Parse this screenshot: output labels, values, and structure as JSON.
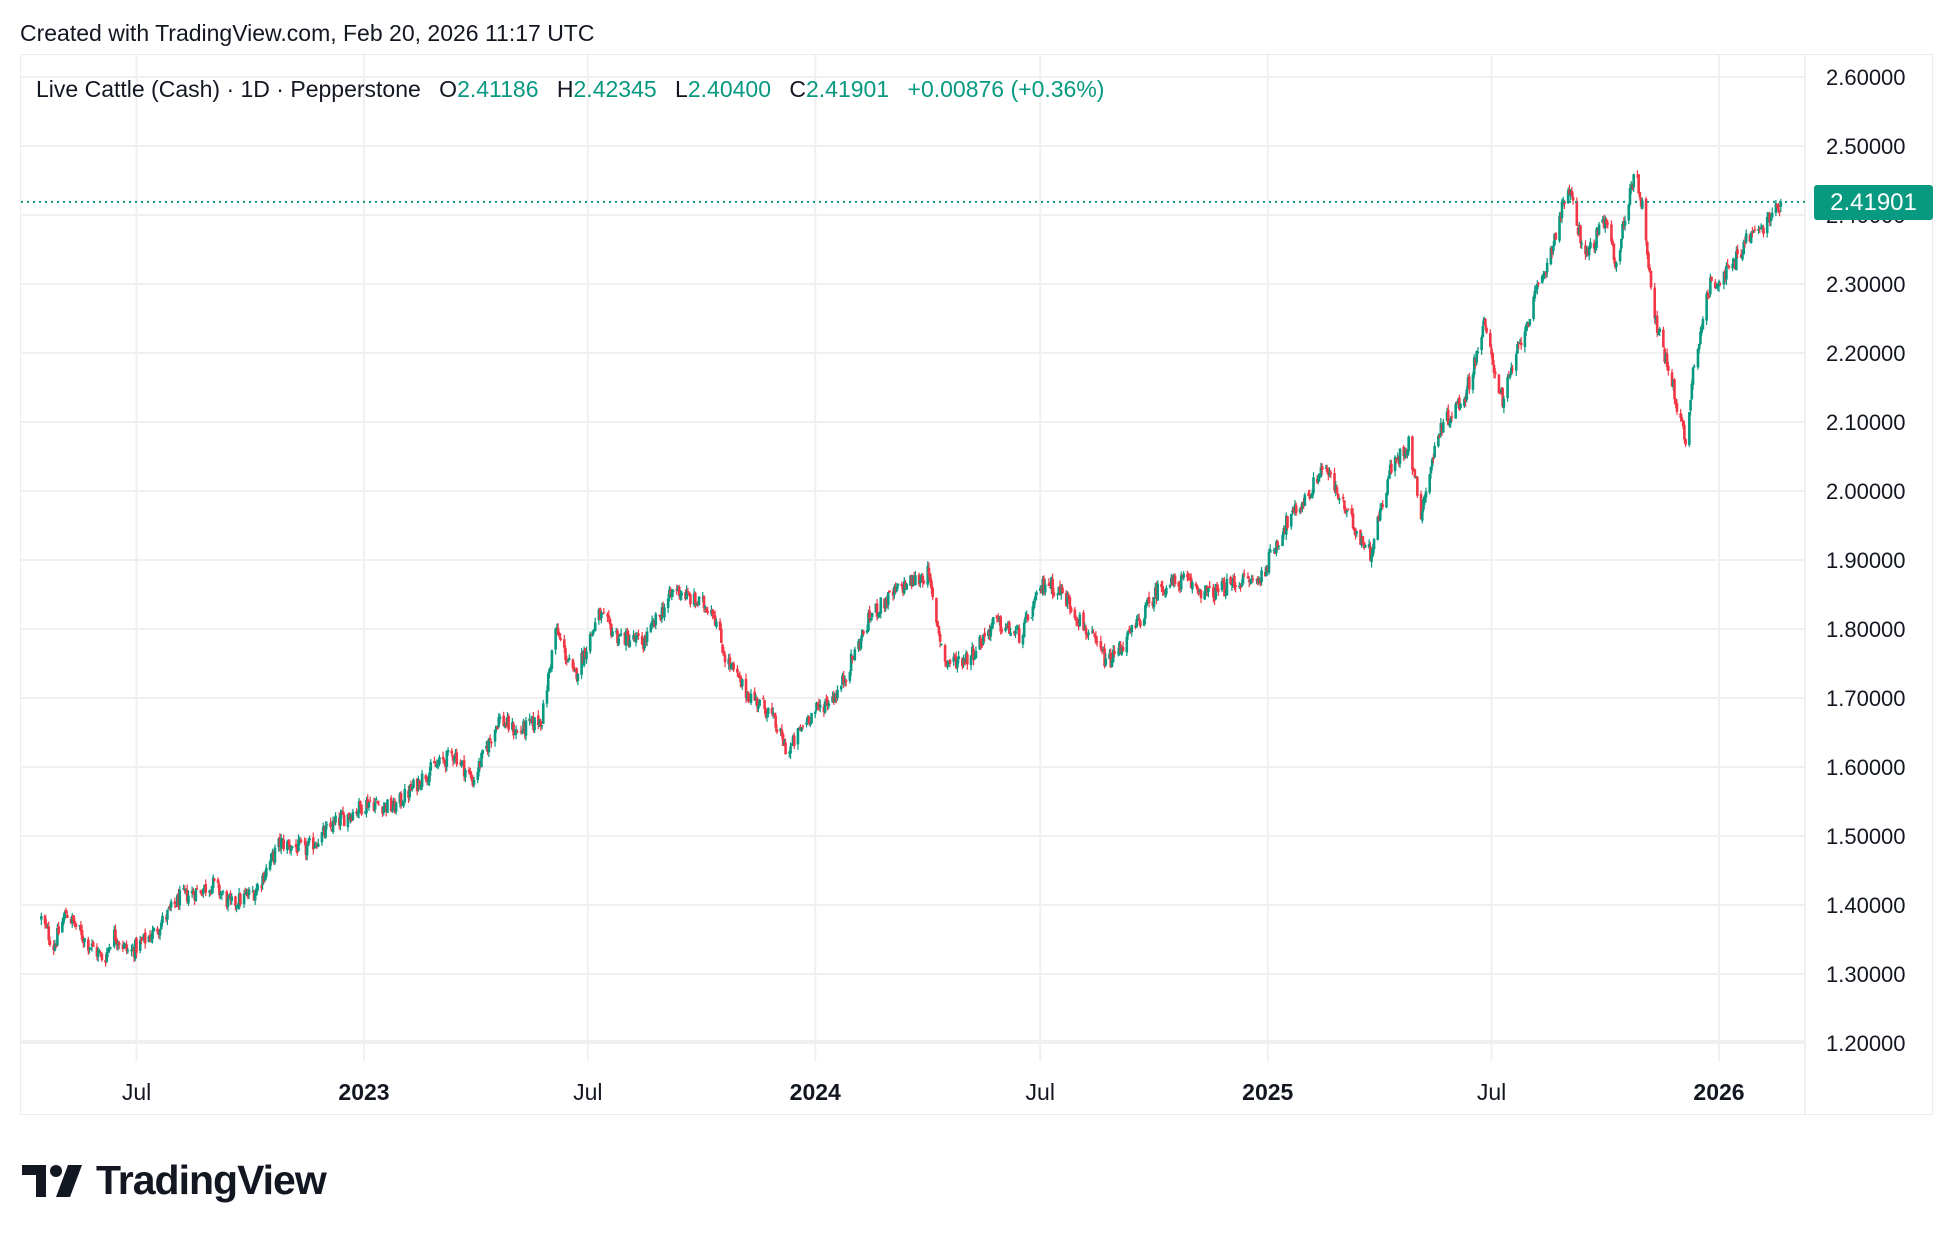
{
  "header": {
    "created_text": "Created with TradingView.com, Feb 20, 2026 11:17 UTC"
  },
  "legend": {
    "symbol": "Live Cattle (Cash) · 1D · Pepperstone",
    "open_label": "O",
    "open": "2.41186",
    "high_label": "H",
    "high": "2.42345",
    "low_label": "L",
    "low": "2.40400",
    "close_label": "C",
    "close": "2.41901",
    "change": "+0.00876 (+0.36%)"
  },
  "price_tag": "2.41901",
  "branding": {
    "logo_text": "TradingView"
  },
  "colors": {
    "up": "#089981",
    "down": "#F23645",
    "grid": "#F0F0F0",
    "last_price_line": "#089981"
  },
  "chart_data": {
    "type": "candlestick",
    "title": "Live Cattle (Cash) · 1D · Pepperstone",
    "xlabel": "",
    "ylabel": "",
    "ylim": [
      1.16,
      2.63
    ],
    "y_ticks": [
      "2.60000",
      "2.50000",
      "2.40000",
      "2.30000",
      "2.20000",
      "2.10000",
      "2.00000",
      "1.90000",
      "1.80000",
      "1.70000",
      "1.60000",
      "1.50000",
      "1.40000",
      "1.30000",
      "1.20000"
    ],
    "x_ticks": [
      {
        "label": "Jul",
        "date": "2022-07-01",
        "major": false
      },
      {
        "label": "2023",
        "date": "2023-01-01",
        "major": true
      },
      {
        "label": "Jul",
        "date": "2023-07-01",
        "major": false
      },
      {
        "label": "2024",
        "date": "2024-01-01",
        "major": true
      },
      {
        "label": "Jul",
        "date": "2024-07-01",
        "major": false
      },
      {
        "label": "2025",
        "date": "2025-01-01",
        "major": true
      },
      {
        "label": "Jul",
        "date": "2025-07-01",
        "major": false
      },
      {
        "label": "2026",
        "date": "2026-01-01",
        "major": true
      }
    ],
    "grid": true,
    "last_price": 2.41901,
    "date_range": [
      "2022-04-15",
      "2026-02-20"
    ],
    "approx_close_path": [
      [
        "2022-04-15",
        1.38
      ],
      [
        "2022-04-25",
        1.34
      ],
      [
        "2022-05-05",
        1.39
      ],
      [
        "2022-05-20",
        1.35
      ],
      [
        "2022-06-05",
        1.32
      ],
      [
        "2022-06-12",
        1.36
      ],
      [
        "2022-06-25",
        1.33
      ],
      [
        "2022-07-15",
        1.36
      ],
      [
        "2022-08-05",
        1.41
      ],
      [
        "2022-09-01",
        1.43
      ],
      [
        "2022-09-15",
        1.4
      ],
      [
        "2022-10-05",
        1.42
      ],
      [
        "2022-10-25",
        1.49
      ],
      [
        "2022-11-15",
        1.48
      ],
      [
        "2022-12-10",
        1.52
      ],
      [
        "2023-01-05",
        1.55
      ],
      [
        "2023-01-25",
        1.54
      ],
      [
        "2023-02-20",
        1.59
      ],
      [
        "2023-03-15",
        1.62
      ],
      [
        "2023-03-30",
        1.58
      ],
      [
        "2023-04-20",
        1.67
      ],
      [
        "2023-05-05",
        1.65
      ],
      [
        "2023-05-25",
        1.67
      ],
      [
        "2023-06-05",
        1.8
      ],
      [
        "2023-06-20",
        1.73
      ],
      [
        "2023-07-10",
        1.82
      ],
      [
        "2023-07-25",
        1.79
      ],
      [
        "2023-08-15",
        1.78
      ],
      [
        "2023-09-10",
        1.86
      ],
      [
        "2023-09-25",
        1.84
      ],
      [
        "2023-10-10",
        1.83
      ],
      [
        "2023-10-20",
        1.76
      ],
      [
        "2023-11-05",
        1.71
      ],
      [
        "2023-11-25",
        1.68
      ],
      [
        "2023-12-10",
        1.62
      ],
      [
        "2023-12-25",
        1.67
      ],
      [
        "2024-01-20",
        1.71
      ],
      [
        "2024-02-15",
        1.82
      ],
      [
        "2024-03-10",
        1.86
      ],
      [
        "2024-04-01",
        1.88
      ],
      [
        "2024-04-15",
        1.75
      ],
      [
        "2024-05-05",
        1.76
      ],
      [
        "2024-05-25",
        1.81
      ],
      [
        "2024-06-15",
        1.79
      ],
      [
        "2024-07-05",
        1.87
      ],
      [
        "2024-07-20",
        1.85
      ],
      [
        "2024-08-10",
        1.79
      ],
      [
        "2024-08-25",
        1.75
      ],
      [
        "2024-09-15",
        1.8
      ],
      [
        "2024-10-05",
        1.86
      ],
      [
        "2024-10-25",
        1.87
      ],
      [
        "2024-11-15",
        1.85
      ],
      [
        "2024-12-10",
        1.87
      ],
      [
        "2024-12-25",
        1.87
      ],
      [
        "2025-01-15",
        1.95
      ],
      [
        "2025-02-05",
        2.0
      ],
      [
        "2025-02-15",
        2.04
      ],
      [
        "2025-03-05",
        1.97
      ],
      [
        "2025-03-25",
        1.91
      ],
      [
        "2025-04-10",
        2.03
      ],
      [
        "2025-04-25",
        2.07
      ],
      [
        "2025-05-05",
        1.97
      ],
      [
        "2025-05-20",
        2.09
      ],
      [
        "2025-06-10",
        2.14
      ],
      [
        "2025-06-25",
        2.24
      ],
      [
        "2025-07-10",
        2.13
      ],
      [
        "2025-07-25",
        2.22
      ],
      [
        "2025-08-15",
        2.33
      ],
      [
        "2025-09-01",
        2.44
      ],
      [
        "2025-09-15",
        2.34
      ],
      [
        "2025-10-01",
        2.39
      ],
      [
        "2025-10-10",
        2.33
      ],
      [
        "2025-10-25",
        2.47
      ],
      [
        "2025-11-01",
        2.4
      ],
      [
        "2025-11-10",
        2.25
      ],
      [
        "2025-11-25",
        2.15
      ],
      [
        "2025-12-05",
        2.07
      ],
      [
        "2025-12-12",
        2.19
      ],
      [
        "2025-12-25",
        2.3
      ],
      [
        "2026-01-10",
        2.32
      ],
      [
        "2026-01-25",
        2.37
      ],
      [
        "2026-02-05",
        2.38
      ],
      [
        "2026-02-20",
        2.41901
      ]
    ]
  }
}
